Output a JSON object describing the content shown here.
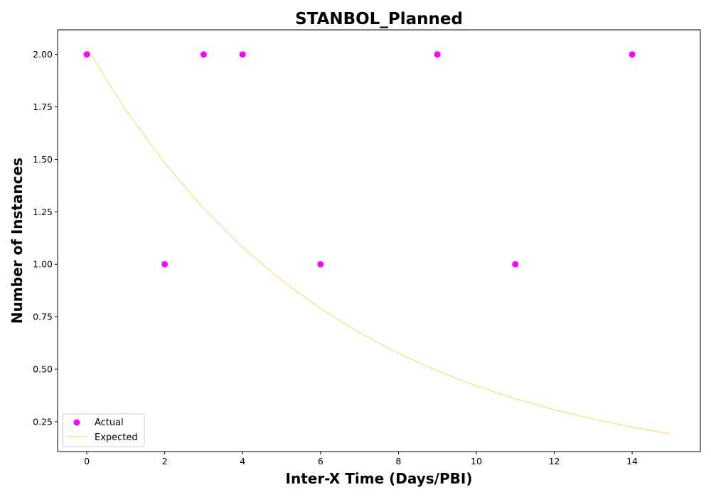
{
  "chart_data": {
    "type": "scatter",
    "title": "STANBOL_Planned",
    "xlabel": "Inter-X Time (Days/PBI)",
    "ylabel": "Number of Instances",
    "xlim": [
      -0.75,
      15.75
    ],
    "ylim": [
      0.1075,
      2.1175
    ],
    "xticks": [
      0,
      2,
      4,
      6,
      8,
      10,
      12,
      14
    ],
    "yticks": [
      0.25,
      0.5,
      0.75,
      1.0,
      1.25,
      1.5,
      1.75,
      2.0
    ],
    "ytick_format": 2,
    "grid": false,
    "legend_position": "lower-left",
    "series": [
      {
        "name": "Actual",
        "kind": "scatter",
        "color": "#ff00ff",
        "x": [
          0,
          2,
          3,
          4,
          6,
          9,
          11,
          14
        ],
        "y": [
          2,
          1,
          2,
          2,
          1,
          2,
          1,
          2
        ]
      },
      {
        "name": "Expected",
        "kind": "line",
        "color": "#f0e68c",
        "x": [
          0,
          1,
          2,
          3,
          4,
          5,
          6,
          7,
          8,
          9,
          10,
          11,
          12,
          13,
          14,
          15
        ],
        "y": [
          2.03,
          1.735,
          1.482,
          1.266,
          1.081,
          0.924,
          0.789,
          0.674,
          0.576,
          0.492,
          0.42,
          0.359,
          0.307,
          0.262,
          0.224,
          0.191
        ]
      }
    ]
  }
}
